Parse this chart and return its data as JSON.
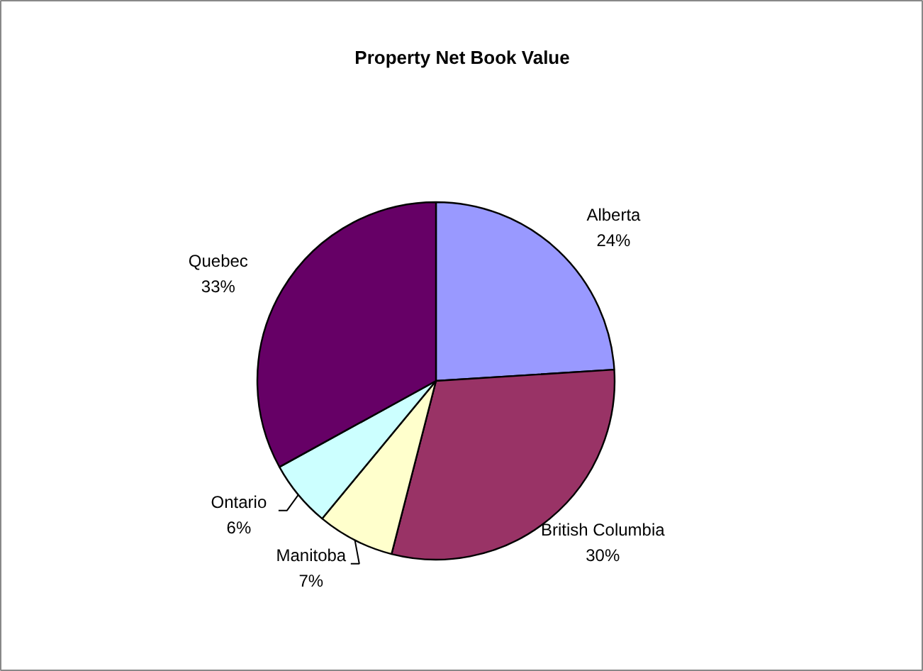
{
  "chart_data": {
    "type": "pie",
    "title": "Property Net Book Value",
    "categories": [
      "Alberta",
      "British Columbia",
      "Manitoba",
      "Ontario",
      "Quebec"
    ],
    "values": [
      24,
      30,
      7,
      6,
      33
    ],
    "colors": [
      "#9999ff",
      "#993366",
      "#ffffcc",
      "#ccffff",
      "#660066"
    ],
    "value_labels": [
      "24%",
      "30%",
      "7%",
      "6%",
      "33%"
    ]
  }
}
